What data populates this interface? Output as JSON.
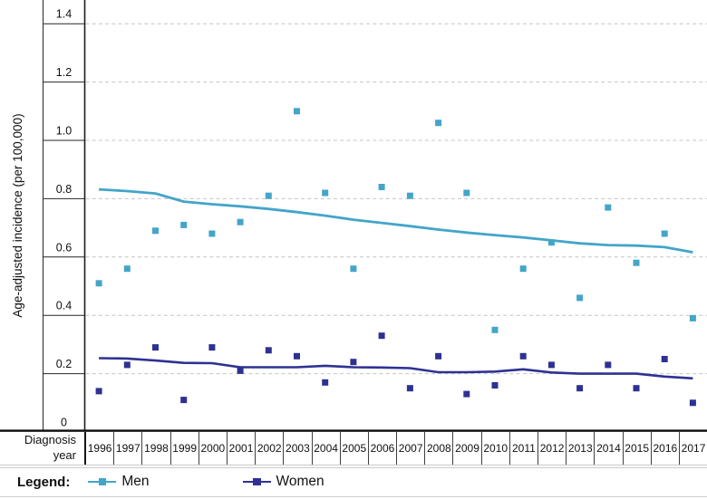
{
  "y_axis": {
    "title": "Age-adjusted incidence (per 100,000)",
    "tick_labels": [
      "1.4",
      "1.2",
      "1.0",
      "0.8",
      "0.6",
      "0.4",
      "0.2",
      "0"
    ]
  },
  "x_axis": {
    "title": "Diagnosis year",
    "years": [
      "1996",
      "1997",
      "1998",
      "1999",
      "2000",
      "2001",
      "2002",
      "2003",
      "2004",
      "2005",
      "2006",
      "2007",
      "2008",
      "2009",
      "2010",
      "2011",
      "2012",
      "2013",
      "2014",
      "2015",
      "2016",
      "2017"
    ]
  },
  "legend": {
    "label": "Legend:",
    "items": [
      {
        "label": "Men",
        "color": "#43a5c9"
      },
      {
        "label": "Women",
        "color": "#2e3192"
      }
    ]
  },
  "chart_data": {
    "type": "scatter",
    "title": "",
    "xlabel": "Diagnosis year",
    "ylabel": "Age-adjusted incidence (per 100,000)",
    "x": [
      1996,
      1997,
      1998,
      1999,
      2000,
      2001,
      2002,
      2003,
      2004,
      2005,
      2006,
      2007,
      2008,
      2009,
      2010,
      2011,
      2012,
      2013,
      2014,
      2015,
      2016,
      2017
    ],
    "ylim": [
      0,
      1.48
    ],
    "yticks": [
      0,
      0.2,
      0.4,
      0.6,
      0.8,
      1.0,
      1.2,
      1.4
    ],
    "grid": "dashed-horizontal",
    "legend_position": "bottom",
    "marker": "square",
    "series": [
      {
        "name": "Men",
        "color": "#43a5c9",
        "scatter": [
          0.51,
          0.56,
          0.69,
          0.71,
          0.68,
          0.72,
          0.81,
          1.1,
          0.82,
          0.56,
          0.84,
          0.81,
          1.06,
          0.82,
          0.35,
          0.56,
          0.65,
          0.46,
          0.77,
          0.58,
          0.68,
          0.39
        ],
        "trend_line": [
          0.832,
          0.826,
          0.818,
          0.79,
          0.781,
          0.774,
          0.765,
          0.754,
          0.742,
          0.728,
          0.717,
          0.706,
          0.694,
          0.684,
          0.675,
          0.667,
          0.657,
          0.647,
          0.641,
          0.639,
          0.634,
          0.616
        ]
      },
      {
        "name": "Women",
        "color": "#2e3192",
        "scatter": [
          0.14,
          0.23,
          0.29,
          0.11,
          0.29,
          0.21,
          0.28,
          0.26,
          0.17,
          0.24,
          0.33,
          0.15,
          0.26,
          0.13,
          0.16,
          0.26,
          0.23,
          0.15,
          0.23,
          0.15,
          0.25,
          0.1
        ],
        "trend_line": [
          0.253,
          0.252,
          0.245,
          0.237,
          0.236,
          0.222,
          0.222,
          0.222,
          0.227,
          0.222,
          0.221,
          0.219,
          0.205,
          0.205,
          0.207,
          0.215,
          0.204,
          0.2,
          0.2,
          0.2,
          0.19,
          0.184
        ]
      }
    ]
  }
}
